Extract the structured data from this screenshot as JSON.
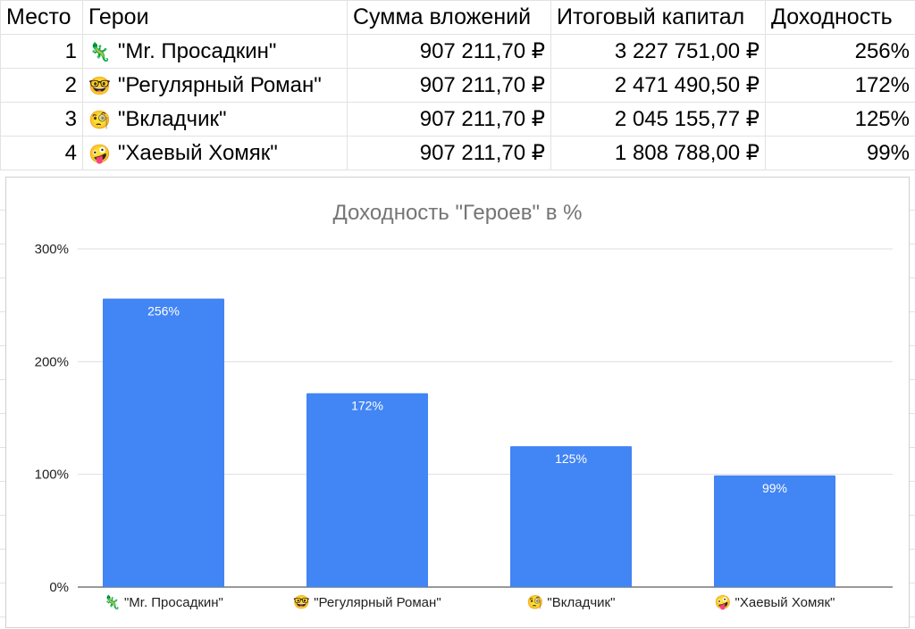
{
  "table": {
    "headers": [
      "Место",
      "Герои",
      "Сумма вложений",
      "Итоговый капитал",
      "Доходность"
    ],
    "rows": [
      {
        "place": "1",
        "emoji": "🦎",
        "name": "\"Mr. Просадкин\"",
        "invested": "907 211,70 ₽",
        "capital": "3 227 751,00 ₽",
        "yield": "256%"
      },
      {
        "place": "2",
        "emoji": "🤓",
        "name": "\"Регулярный Роман\"",
        "invested": "907 211,70 ₽",
        "capital": "2 471 490,50 ₽",
        "yield": "172%"
      },
      {
        "place": "3",
        "emoji": "🧐",
        "name": "\"Вкладчик\"",
        "invested": "907 211,70 ₽",
        "capital": "2 045 155,77 ₽",
        "yield": "125%"
      },
      {
        "place": "4",
        "emoji": "🤪",
        "name": "\"Хаевый Хомяк\"",
        "invested": "907 211,70 ₽",
        "capital": "1 808 788,00 ₽",
        "yield": "99%"
      }
    ]
  },
  "chart_data": {
    "type": "bar",
    "title": "Доходность \"Героев\" в %",
    "categories": [
      "🦎 \"Mr. Просадкин\"",
      "🤓 \"Регулярный Роман\"",
      "🧐 \"Вкладчик\"",
      "🤪 \"Хаевый Хомяк\""
    ],
    "values": [
      256,
      172,
      125,
      99
    ],
    "value_labels": [
      "256%",
      "172%",
      "125%",
      "99%"
    ],
    "yticks": [
      "0%",
      "100%",
      "200%",
      "300%"
    ],
    "ylim": [
      0,
      300
    ],
    "xlabel": "",
    "ylabel": "",
    "grid": true,
    "bar_color": "#4285f4"
  }
}
